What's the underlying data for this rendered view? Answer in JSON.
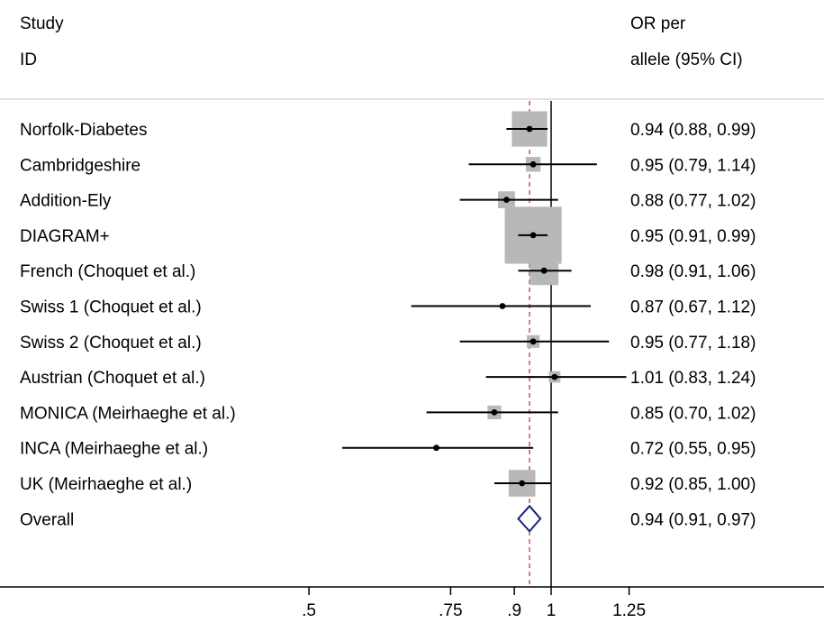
{
  "chart_data": {
    "type": "forest",
    "headers": {
      "study": [
        "Study",
        "ID"
      ],
      "estimate": [
        "OR per",
        "allele (95% CI)"
      ]
    },
    "studies": [
      {
        "label": "Norfolk-Diabetes",
        "or": 0.94,
        "lo": 0.88,
        "hi": 0.99,
        "text": "0.94 (0.88, 0.99)",
        "weight": 1.3
      },
      {
        "label": "Cambridgeshire",
        "or": 0.95,
        "lo": 0.79,
        "hi": 1.14,
        "text": "0.95 (0.79, 1.14)",
        "weight": 0.35
      },
      {
        "label": "Addition-Ely",
        "or": 0.88,
        "lo": 0.77,
        "hi": 1.02,
        "text": "0.88 (0.77, 1.02)",
        "weight": 0.45
      },
      {
        "label": "DIAGRAM+",
        "or": 0.95,
        "lo": 0.91,
        "hi": 0.99,
        "text": "0.95 (0.91, 0.99)",
        "weight": 2.3
      },
      {
        "label": "French (Choquet et al.)",
        "or": 0.98,
        "lo": 0.91,
        "hi": 1.06,
        "text": "0.98 (0.91, 1.06)",
        "weight": 1.0
      },
      {
        "label": "Swiss 1 (Choquet et al.)",
        "or": 0.87,
        "lo": 0.67,
        "hi": 1.12,
        "text": "0.87 (0.67, 1.12)",
        "weight": 0.0
      },
      {
        "label": "Swiss 2 (Choquet et al.)",
        "or": 0.95,
        "lo": 0.77,
        "hi": 1.18,
        "text": "0.95 (0.77, 1.18)",
        "weight": 0.25
      },
      {
        "label": "Austrian (Choquet et al.)",
        "or": 1.01,
        "lo": 0.83,
        "hi": 1.24,
        "text": "1.01 (0.83, 1.24)",
        "weight": 0.2
      },
      {
        "label": "MONICA (Meirhaeghe et al.)",
        "or": 0.85,
        "lo": 0.7,
        "hi": 1.02,
        "text": "0.85 (0.70, 1.02)",
        "weight": 0.3
      },
      {
        "label": "INCA (Meirhaeghe et al.)",
        "or": 0.72,
        "lo": 0.55,
        "hi": 0.95,
        "text": "0.72 (0.55, 0.95)",
        "weight": 0.0
      },
      {
        "label": "UK (Meirhaeghe et al.)",
        "or": 0.92,
        "lo": 0.85,
        "hi": 1.0,
        "text": "0.92 (0.85, 1.00)",
        "weight": 0.9
      }
    ],
    "overall": {
      "label": "Overall",
      "or": 0.94,
      "lo": 0.91,
      "hi": 0.97,
      "text": "0.94 (0.91, 0.97)"
    },
    "x_ticks": [
      {
        "value": 0.5,
        "label": ".5"
      },
      {
        "value": 0.75,
        "label": ".75"
      },
      {
        "value": 0.9,
        "label": ".9"
      },
      {
        "value": 1.0,
        "label": "1"
      },
      {
        "value": 1.25,
        "label": "1.25"
      }
    ],
    "x_scale": "log",
    "null_line": 1.0,
    "overall_line": 0.94,
    "colors": {
      "box": "#b8b8b8",
      "ci": "#000000",
      "diamond": "#1a237e",
      "overall_line": "#b03a48",
      "null_line": "#000000",
      "axis": "#000000",
      "separator": "#d8d8d8"
    }
  }
}
